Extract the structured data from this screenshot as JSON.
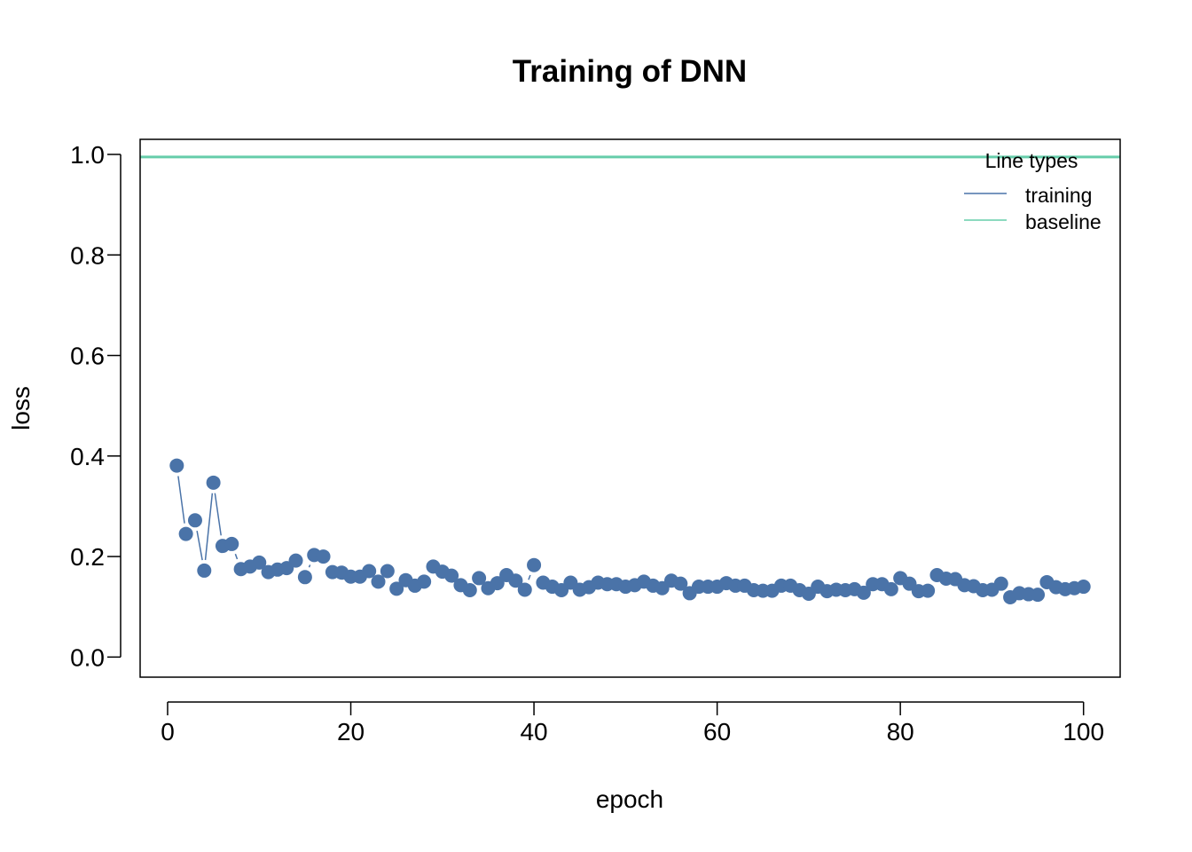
{
  "chart_data": {
    "type": "line",
    "title": "Training of DNN",
    "xlabel": "epoch",
    "ylabel": "loss",
    "xlim": [
      -3,
      104
    ],
    "ylim": [
      -0.04,
      1.03
    ],
    "x_ticks": [
      "0",
      "20",
      "40",
      "60",
      "80",
      "100"
    ],
    "y_ticks": [
      "0.0",
      "0.2",
      "0.4",
      "0.6",
      "0.8",
      "1.0"
    ],
    "grid": false,
    "legend": {
      "title": "Line types",
      "position": "top-right",
      "entries": [
        "training",
        "baseline"
      ]
    },
    "series": [
      {
        "name": "training",
        "color": "#4a73a8",
        "x": [
          1,
          2,
          3,
          4,
          5,
          6,
          7,
          8,
          9,
          10,
          11,
          12,
          13,
          14,
          15,
          16,
          17,
          18,
          19,
          20,
          21,
          22,
          23,
          24,
          25,
          26,
          27,
          28,
          29,
          30,
          31,
          32,
          33,
          34,
          35,
          36,
          37,
          38,
          39,
          40,
          41,
          42,
          43,
          44,
          45,
          46,
          47,
          48,
          49,
          50,
          51,
          52,
          53,
          54,
          55,
          56,
          57,
          58,
          59,
          60,
          61,
          62,
          63,
          64,
          65,
          66,
          67,
          68,
          69,
          70,
          71,
          72,
          73,
          74,
          75,
          76,
          77,
          78,
          79,
          80,
          81,
          82,
          83,
          84,
          85,
          86,
          87,
          88,
          89,
          90,
          91,
          92,
          93,
          94,
          95,
          96,
          97,
          98,
          99,
          100
        ],
        "values": [
          0.381,
          0.245,
          0.272,
          0.172,
          0.347,
          0.221,
          0.225,
          0.175,
          0.18,
          0.188,
          0.169,
          0.174,
          0.177,
          0.192,
          0.159,
          0.203,
          0.2,
          0.169,
          0.168,
          0.16,
          0.16,
          0.171,
          0.15,
          0.171,
          0.136,
          0.153,
          0.142,
          0.15,
          0.18,
          0.17,
          0.162,
          0.143,
          0.133,
          0.157,
          0.137,
          0.147,
          0.163,
          0.152,
          0.134,
          0.183,
          0.148,
          0.14,
          0.133,
          0.148,
          0.134,
          0.139,
          0.148,
          0.145,
          0.145,
          0.14,
          0.143,
          0.15,
          0.142,
          0.137,
          0.152,
          0.146,
          0.127,
          0.14,
          0.14,
          0.14,
          0.147,
          0.142,
          0.142,
          0.133,
          0.132,
          0.132,
          0.142,
          0.142,
          0.133,
          0.126,
          0.14,
          0.131,
          0.134,
          0.133,
          0.135,
          0.128,
          0.145,
          0.145,
          0.135,
          0.157,
          0.146,
          0.131,
          0.132,
          0.163,
          0.156,
          0.155,
          0.143,
          0.141,
          0.133,
          0.134,
          0.146,
          0.119,
          0.127,
          0.125,
          0.124,
          0.149,
          0.139,
          0.135,
          0.137,
          0.14
        ]
      },
      {
        "name": "baseline",
        "color": "#66cdaa",
        "y": 0.995
      }
    ]
  }
}
